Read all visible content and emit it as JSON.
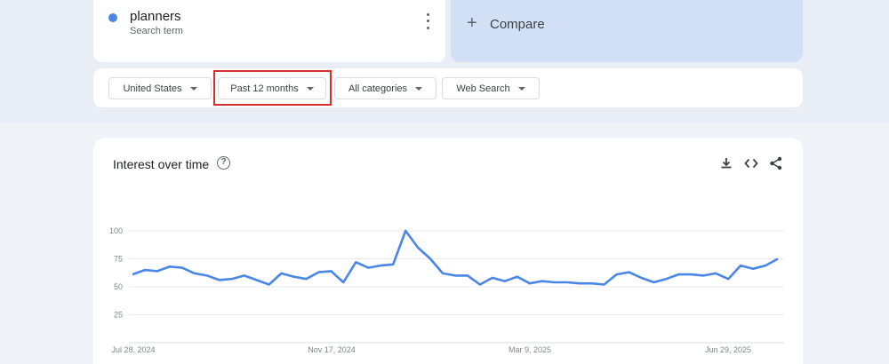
{
  "search_term": {
    "name": "planners",
    "subtitle": "Search term",
    "dot_color": "#4a86e8"
  },
  "compare": {
    "label": "Compare"
  },
  "filters": {
    "region": "United States",
    "time_range": "Past 12 months",
    "category": "All categories",
    "search_type": "Web Search"
  },
  "chart": {
    "title": "Interest over time",
    "icons": [
      "help-icon",
      "download-icon",
      "embed-icon",
      "share-icon"
    ]
  },
  "chart_data": {
    "type": "line",
    "title": "Interest over time",
    "xlabel": "",
    "ylabel": "",
    "ylim": [
      0,
      100
    ],
    "yticks": [
      25,
      50,
      75,
      100
    ],
    "xtick_labels": [
      "Jul 28, 2024",
      "Nov 17, 2024",
      "Mar 9, 2025",
      "Jun 29, 2025"
    ],
    "grid": true,
    "line_color": "#4a86e8",
    "series": [
      {
        "values": [
          61,
          65,
          64,
          68,
          67,
          62,
          60,
          56,
          57,
          60,
          56,
          52,
          62,
          59,
          57,
          63,
          64,
          54,
          72,
          67,
          69,
          70,
          100,
          85,
          75,
          62,
          60,
          60,
          52,
          58,
          55,
          59,
          53,
          55,
          54,
          54,
          53,
          53,
          52,
          61,
          63,
          58,
          54,
          57,
          61,
          61,
          60,
          62,
          57,
          69,
          66,
          69,
          75
        ]
      }
    ]
  }
}
